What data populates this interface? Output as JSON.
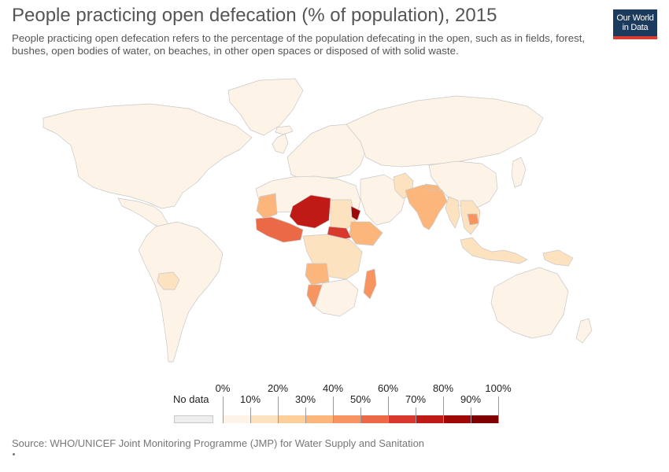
{
  "header": {
    "title": "People practicing open defecation (% of population), 2015",
    "subtitle": "People practicing open defecation refers to the percentage of the population defecating in the open, such as in fields, forest, bushes, open bodies of water, on beaches, in other open spaces or disposed of with solid waste."
  },
  "logo": {
    "line1": "Our World",
    "line2": "in Data"
  },
  "legend": {
    "no_data_label": "No data",
    "ticks_top": [
      "0%",
      "20%",
      "40%",
      "60%",
      "80%",
      "100%"
    ],
    "ticks_bottom": [
      "10%",
      "30%",
      "50%",
      "70%",
      "90%"
    ],
    "bins": [
      {
        "range": "0-10%",
        "color": "#fdf3e6"
      },
      {
        "range": "10-20%",
        "color": "#fde2c0"
      },
      {
        "range": "20-30%",
        "color": "#fdd09b"
      },
      {
        "range": "30-40%",
        "color": "#fcb67b"
      },
      {
        "range": "40-50%",
        "color": "#f7945f"
      },
      {
        "range": "50-60%",
        "color": "#ec6947"
      },
      {
        "range": "60-70%",
        "color": "#d9392c"
      },
      {
        "range": "70-80%",
        "color": "#bf1a16"
      },
      {
        "range": "80-90%",
        "color": "#a00808"
      },
      {
        "range": "90-100%",
        "color": "#7f0000"
      }
    ],
    "no_data_color": "#eeeeee"
  },
  "map": {
    "regions": [
      {
        "name": "north-america",
        "color": "#fdf3e6"
      },
      {
        "name": "greenland",
        "color": "#fdf3e6"
      },
      {
        "name": "central-america",
        "color": "#fdf3e6"
      },
      {
        "name": "south-america",
        "color": "#fdf3e6"
      },
      {
        "name": "bolivia",
        "color": "#fde2c0"
      },
      {
        "name": "europe",
        "color": "#fdf3e6"
      },
      {
        "name": "russia-asia",
        "color": "#fdf3e6"
      },
      {
        "name": "north-africa",
        "color": "#fdf3e6"
      },
      {
        "name": "mauritania",
        "color": "#fcb67b"
      },
      {
        "name": "niger-chad",
        "color": "#bf1a16"
      },
      {
        "name": "sudan",
        "color": "#fde2c0"
      },
      {
        "name": "south-sudan",
        "color": "#d9392c"
      },
      {
        "name": "eritrea",
        "color": "#a00808"
      },
      {
        "name": "ethiopia",
        "color": "#fcb67b"
      },
      {
        "name": "west-africa",
        "color": "#ec6947"
      },
      {
        "name": "central-africa",
        "color": "#fde2c0"
      },
      {
        "name": "angola",
        "color": "#fcb67b"
      },
      {
        "name": "namibia",
        "color": "#f7945f"
      },
      {
        "name": "southern-africa",
        "color": "#fdf3e6"
      },
      {
        "name": "madagascar",
        "color": "#f7945f"
      },
      {
        "name": "arabia-middle-east",
        "color": "#fdf3e6"
      },
      {
        "name": "pakistan",
        "color": "#fde2c0"
      },
      {
        "name": "india",
        "color": "#fcb67b"
      },
      {
        "name": "nepal",
        "color": "#fcb67b"
      },
      {
        "name": "china",
        "color": "#fdf3e6"
      },
      {
        "name": "myanmar",
        "color": "#fde2c0"
      },
      {
        "name": "cambodia",
        "color": "#f7945f"
      },
      {
        "name": "indochina",
        "color": "#fde2c0"
      },
      {
        "name": "indonesia",
        "color": "#fde2c0"
      },
      {
        "name": "papua-new-guinea",
        "color": "#fde2c0"
      },
      {
        "name": "australia",
        "color": "#fdf3e6"
      },
      {
        "name": "new-zealand",
        "color": "#fdf3e6"
      },
      {
        "name": "japan",
        "color": "#fdf3e6"
      },
      {
        "name": "uk-ireland",
        "color": "#fdf3e6"
      },
      {
        "name": "iceland",
        "color": "#fdf3e6"
      }
    ]
  },
  "footer": {
    "source": "Source: WHO/UNICEF Joint Monitoring Programme (JMP) for Water Supply and Sanitation"
  }
}
